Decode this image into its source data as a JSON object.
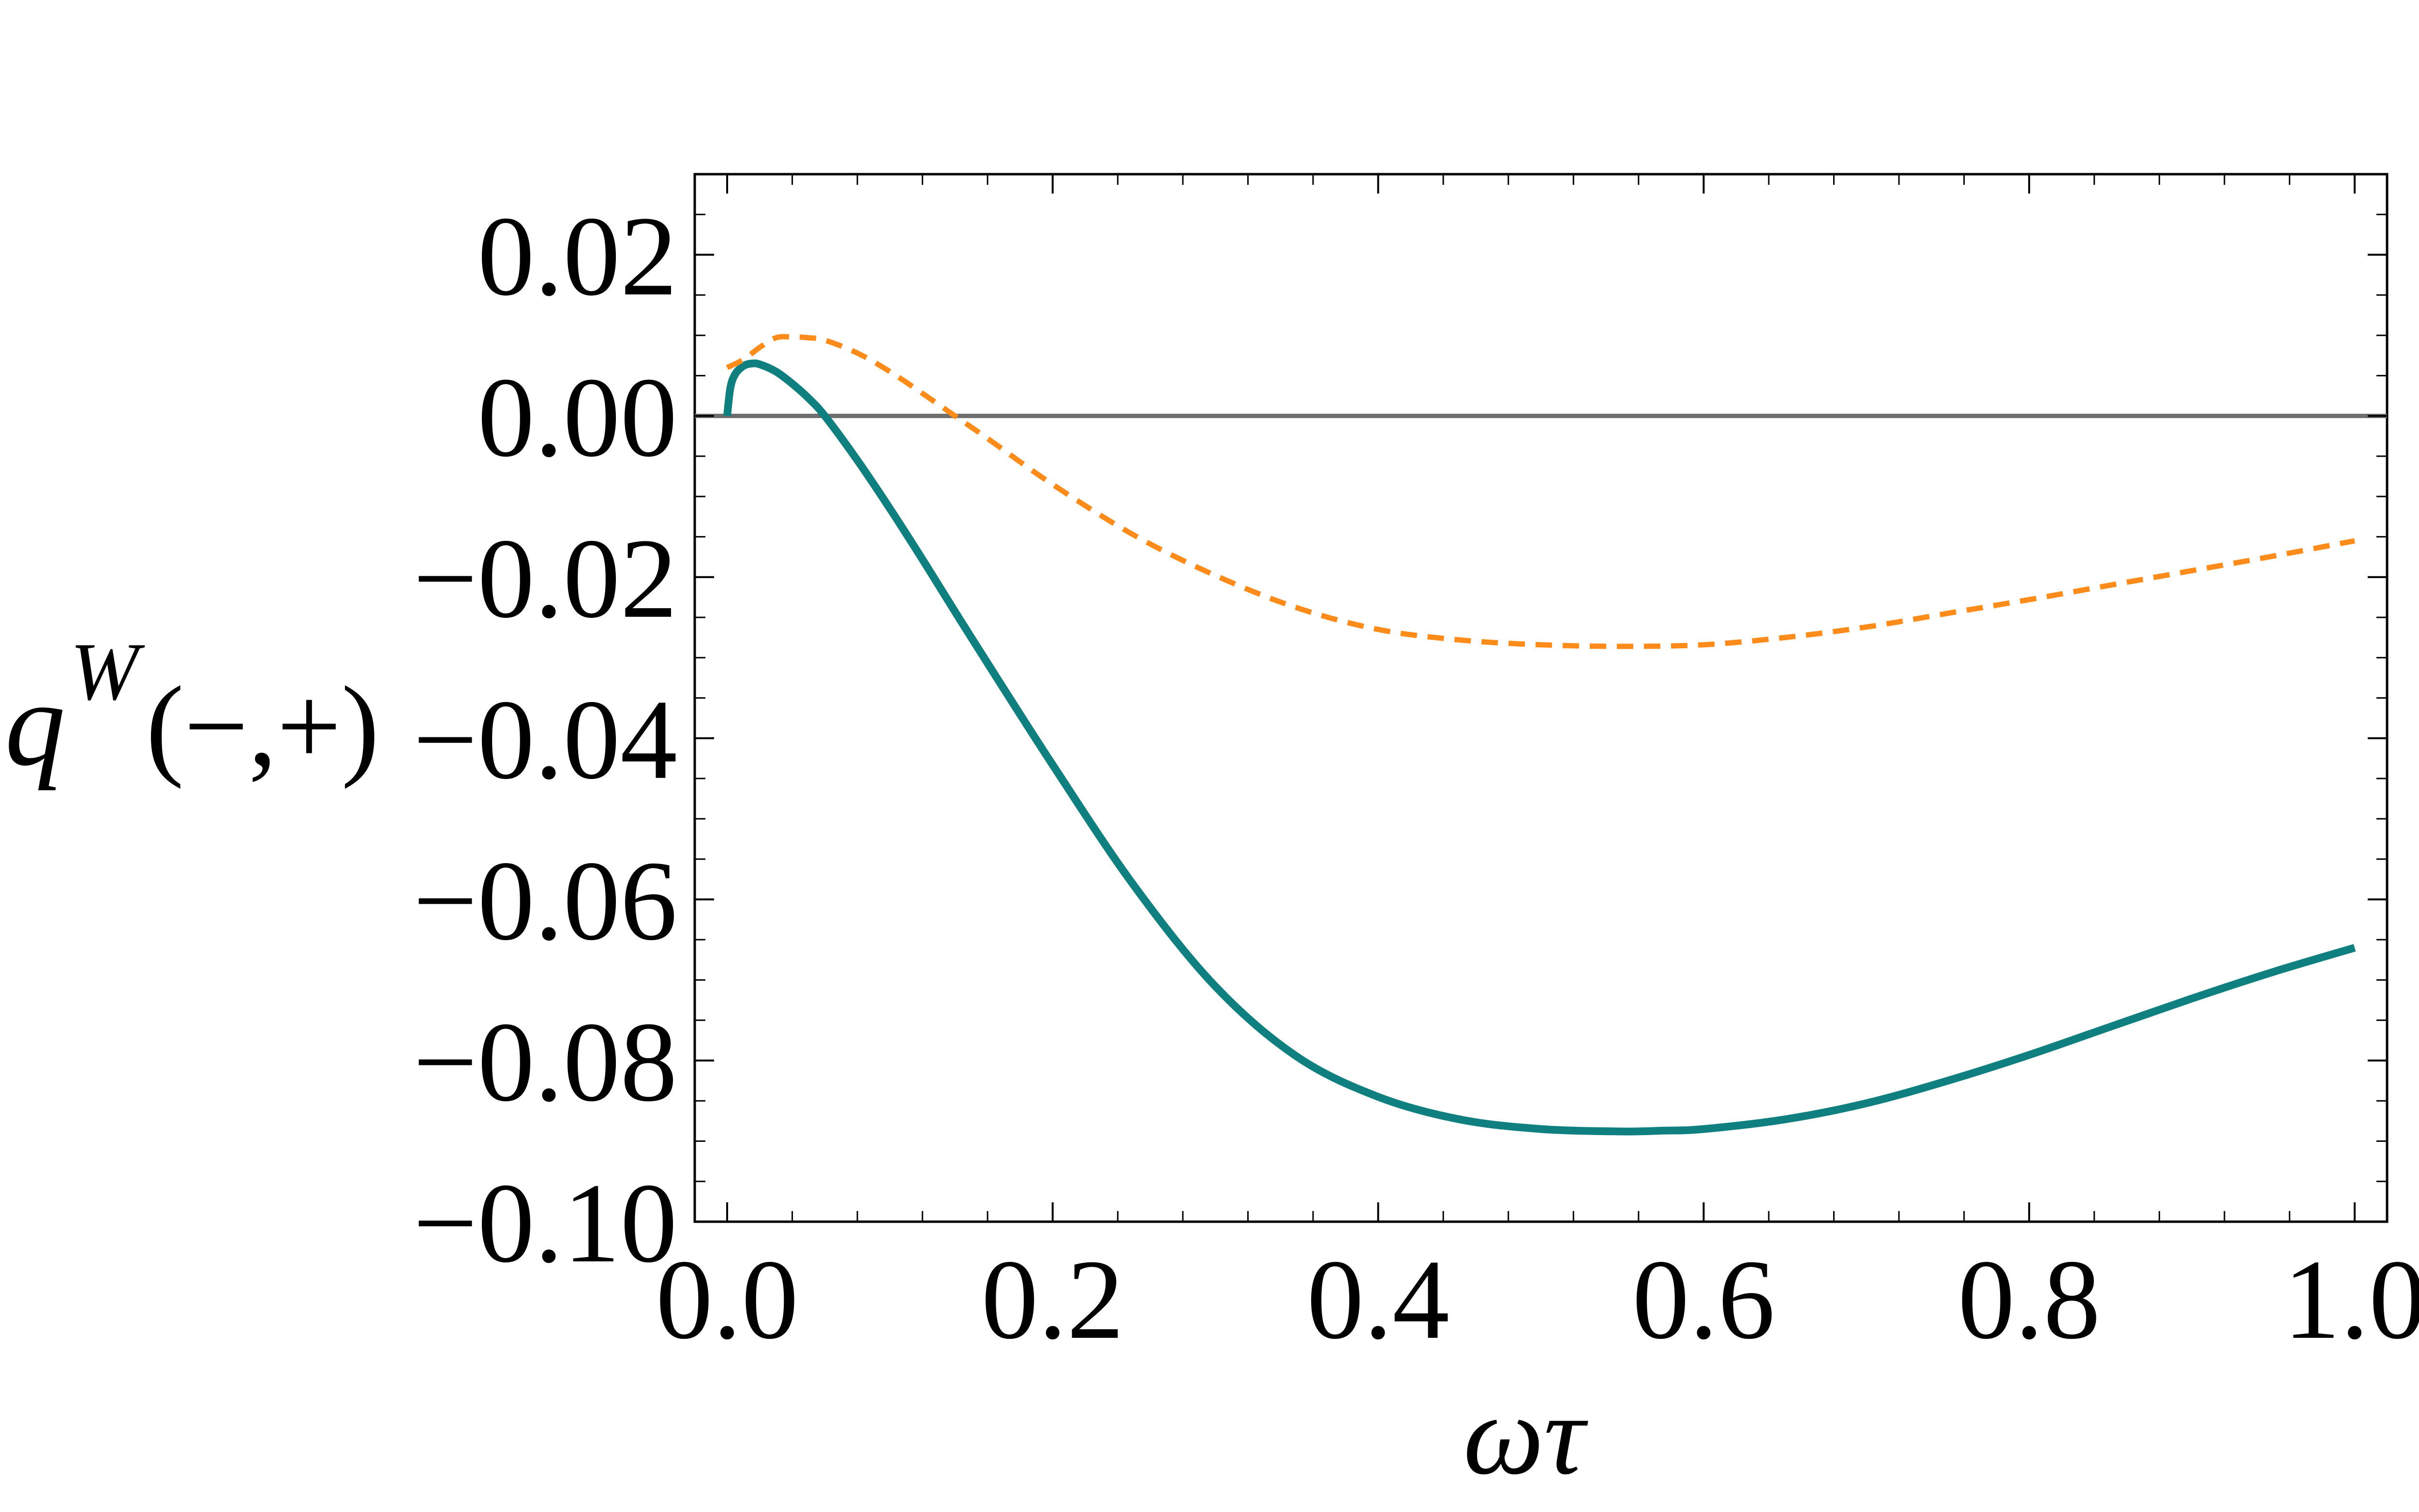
{
  "chart_data": {
    "type": "line",
    "title": "",
    "xlabel": "ωτ",
    "ylabel": {
      "symbol": "q",
      "superscript": "W",
      "arguments": "(−,+)"
    },
    "xlim": [
      0.0,
      1.0
    ],
    "ylim": [
      -0.1,
      0.03
    ],
    "xticks": [
      0.0,
      0.2,
      0.4,
      0.6,
      0.8,
      1.0
    ],
    "xtick_labels": [
      "0.0",
      "0.2",
      "0.4",
      "0.6",
      "0.8",
      "1.0"
    ],
    "yticks": [
      0.02,
      0.0,
      -0.02,
      -0.04,
      -0.06,
      -0.08,
      -0.1
    ],
    "ytick_labels": [
      "0.02",
      "0.00",
      "−0.02",
      "−0.04",
      "−0.06",
      "−0.08",
      "−0.10"
    ],
    "grid": false,
    "reference_line": {
      "y": 0.0,
      "color": "#6e6e6e"
    },
    "series": [
      {
        "name": "solid",
        "style": "solid",
        "color": "#0f7f7f",
        "x": [
          0.0,
          0.002,
          0.005,
          0.01,
          0.015,
          0.02,
          0.03,
          0.04,
          0.05,
          0.06,
          0.08,
          0.1,
          0.12,
          0.15,
          0.2,
          0.25,
          0.3,
          0.35,
          0.4,
          0.45,
          0.5,
          0.55,
          0.575,
          0.6,
          0.65,
          0.7,
          0.75,
          0.8,
          0.85,
          0.9,
          0.95,
          1.0
        ],
        "y": [
          0.0,
          0.0035,
          0.0052,
          0.0062,
          0.0065,
          0.0064,
          0.0055,
          0.004,
          0.0022,
          0.0,
          -0.0055,
          -0.0115,
          -0.0178,
          -0.0275,
          -0.0433,
          -0.0583,
          -0.0708,
          -0.0795,
          -0.0845,
          -0.0873,
          -0.0885,
          -0.0888,
          -0.0887,
          -0.0885,
          -0.0873,
          -0.0853,
          -0.0825,
          -0.0793,
          -0.0758,
          -0.0723,
          -0.069,
          -0.066
        ]
      },
      {
        "name": "dashed",
        "style": "dashed",
        "color": "#ff8c1a",
        "x": [
          0.0,
          0.01,
          0.02,
          0.03,
          0.04,
          0.05,
          0.06,
          0.08,
          0.1,
          0.12,
          0.14,
          0.16,
          0.2,
          0.25,
          0.3,
          0.35,
          0.4,
          0.45,
          0.5,
          0.55,
          0.6,
          0.65,
          0.7,
          0.75,
          0.8,
          0.85,
          0.9,
          0.95,
          1.0
        ],
        "y": [
          0.006,
          0.007,
          0.0085,
          0.0097,
          0.0098,
          0.0097,
          0.0094,
          0.0078,
          0.0055,
          0.0028,
          0.0,
          -0.0028,
          -0.0085,
          -0.0148,
          -0.0198,
          -0.0238,
          -0.0265,
          -0.0278,
          -0.0284,
          -0.0286,
          -0.0284,
          -0.0275,
          -0.0262,
          -0.0245,
          -0.0228,
          -0.021,
          -0.0192,
          -0.0174,
          -0.0155
        ]
      }
    ]
  }
}
